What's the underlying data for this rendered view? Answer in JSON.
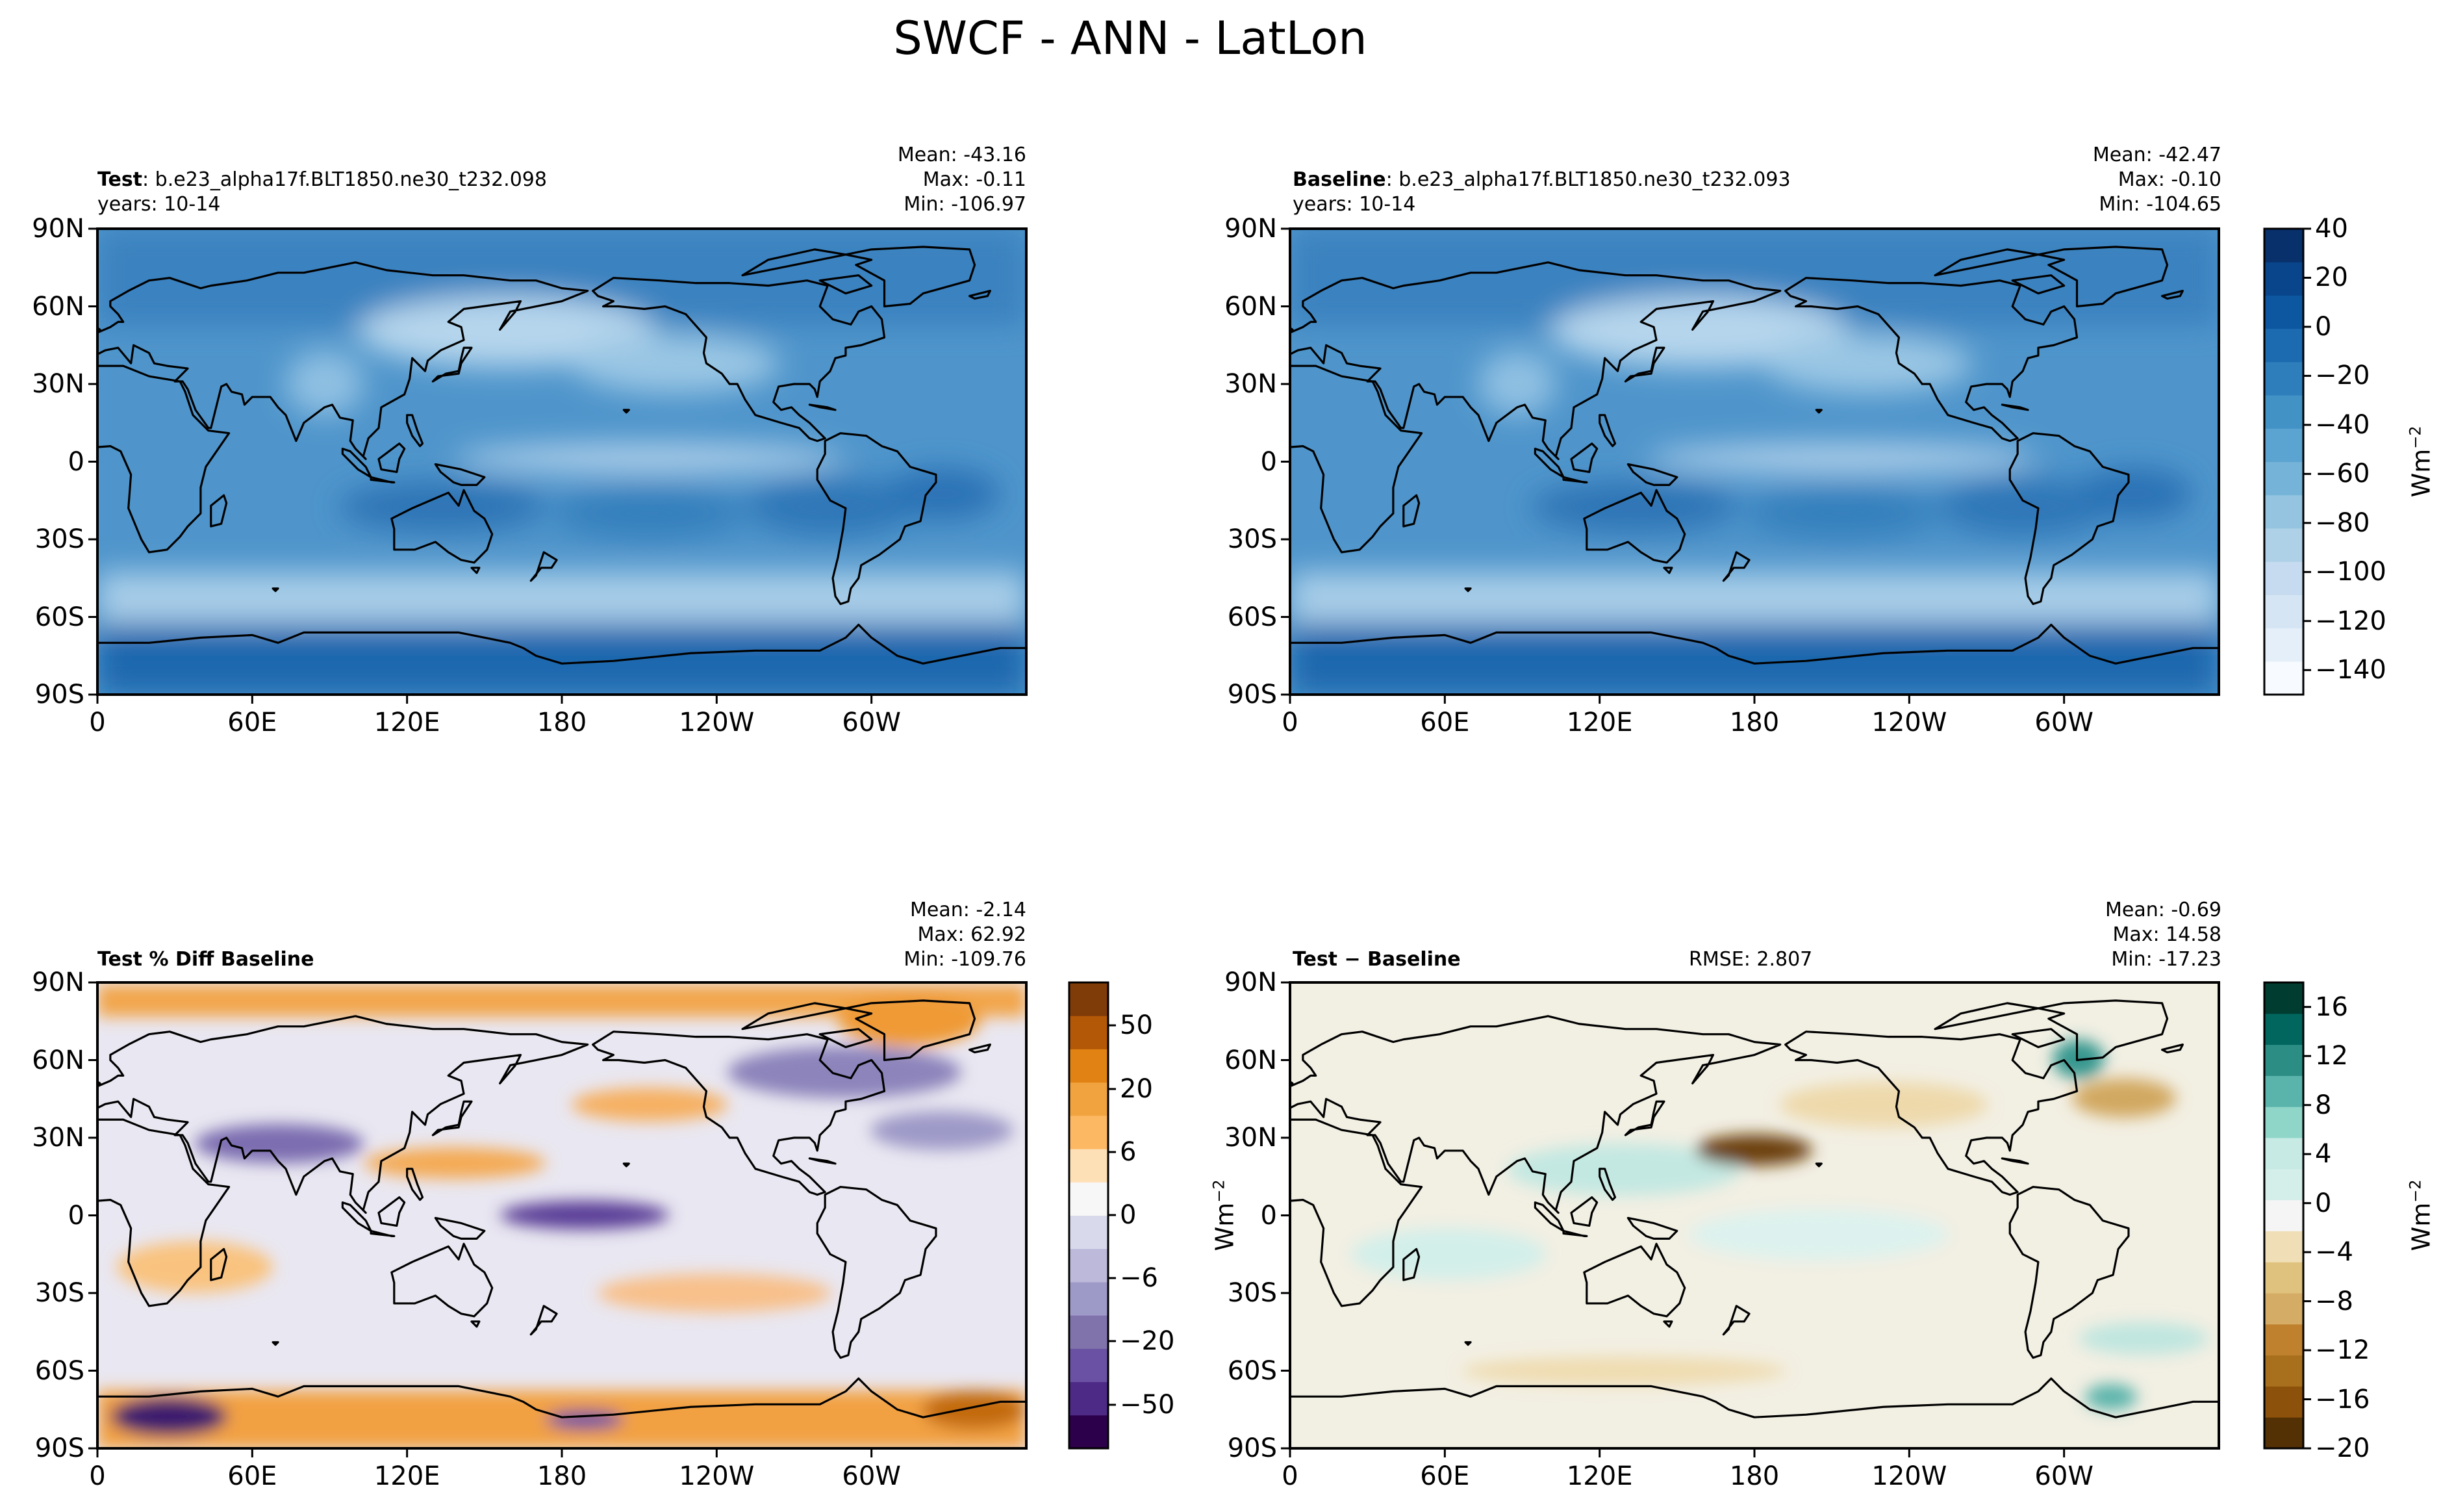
{
  "figure_title": "SWCF - ANN - LatLon",
  "colors": {
    "blues": [
      "#f7fbff",
      "#e4eff9",
      "#d5e5f4",
      "#c6dbef",
      "#aed1e7",
      "#94c4df",
      "#75b3d8",
      "#5ba3d0",
      "#4292c6",
      "#2e7ebc",
      "#1c6aaf",
      "#0d57a1",
      "#08458a",
      "#08306b"
    ],
    "diff_puor": [
      "#2d004b",
      "#4c2a86",
      "#6a51a3",
      "#8073ac",
      "#9e9ac8",
      "#bcb9da",
      "#d8daeb",
      "#f7f7f7",
      "#fee0b6",
      "#fdb863",
      "#f1a340",
      "#e08214",
      "#b35806",
      "#7f3b08"
    ],
    "diff_brbg": [
      "#543005",
      "#8c510a",
      "#a8701d",
      "#bf812d",
      "#d5ac66",
      "#dfc27d",
      "#f0dfb6",
      "#f5f5f5",
      "#d4eee9",
      "#c7eae5",
      "#8fd6c9",
      "#5ab4ac",
      "#2c8d84",
      "#01665e",
      "#003c30"
    ],
    "land_outline": "#000000"
  },
  "panels": {
    "test": {
      "label_bold": "Test",
      "label_rest": ": b.e23_alpha17f.BLT1850.ne30_t232.098",
      "years": "years: 10-14",
      "mean": "Mean: -43.16",
      "max": "Max: -0.11",
      "min": "Min: -106.97"
    },
    "baseline": {
      "label_bold": "Baseline",
      "label_rest": ": b.e23_alpha17f.BLT1850.ne30_t232.093",
      "years": "years: 10-14",
      "mean": "Mean: -42.47",
      "max": "Max: -0.10",
      "min": "Min: -104.65"
    },
    "pct_diff": {
      "label": "Test % Diff Baseline",
      "mean": "Mean: -2.14",
      "max": "Max: 62.92",
      "min": "Min: -109.76"
    },
    "diff": {
      "label": "Test − Baseline",
      "rmse": "RMSE: 2.807",
      "mean": "Mean: -0.69",
      "max": "Max: 14.58",
      "min": "Min: -17.23"
    }
  },
  "colorbars": {
    "main": {
      "labels": [
        "40",
        "20",
        "0",
        "−20",
        "−40",
        "−60",
        "−80",
        "−100",
        "−120",
        "−140"
      ],
      "unit": "Wm",
      "unit_exp": "−2"
    },
    "pct": {
      "labels": [
        "50",
        "20",
        "6",
        "0",
        "−6",
        "−20",
        "−50"
      ]
    },
    "diff": {
      "labels": [
        "16",
        "12",
        "8",
        "4",
        "0",
        "−4",
        "−8",
        "−12",
        "−16",
        "−20"
      ],
      "unit": "Wm",
      "unit_exp": "−2"
    }
  },
  "axis_unit_left": {
    "unit": "Wm",
    "unit_exp": "−2"
  },
  "chart_data": [
    {
      "type": "heatmap",
      "projection": "plate-carree",
      "variable": "SWCF",
      "season": "ANN",
      "title": "Test: b.e23_alpha17f.BLT1850.ne30_t232.098",
      "x_ticks": [
        "0",
        "60E",
        "120E",
        "180",
        "120W",
        "60W"
      ],
      "x_tick_lon": [
        0,
        60,
        120,
        180,
        240,
        300
      ],
      "xlim": [
        0,
        360
      ],
      "y_ticks": [
        "90N",
        "60N",
        "30N",
        "0",
        "30S",
        "60S",
        "90S"
      ],
      "y_tick_lat": [
        90,
        60,
        30,
        0,
        -30,
        -60,
        -90
      ],
      "ylim": [
        -90,
        90
      ],
      "stats": {
        "mean": -43.16,
        "max": -0.11,
        "min": -106.97
      },
      "colorbar_range": [
        -150,
        40
      ],
      "unit": "W m-2"
    },
    {
      "type": "heatmap",
      "projection": "plate-carree",
      "variable": "SWCF",
      "season": "ANN",
      "title": "Baseline: b.e23_alpha17f.BLT1850.ne30_t232.093",
      "x_ticks": [
        "0",
        "60E",
        "120E",
        "180",
        "120W",
        "60W"
      ],
      "x_tick_lon": [
        0,
        60,
        120,
        180,
        240,
        300
      ],
      "xlim": [
        0,
        360
      ],
      "y_ticks": [
        "90N",
        "60N",
        "30N",
        "0",
        "30S",
        "60S",
        "90S"
      ],
      "y_tick_lat": [
        90,
        60,
        30,
        0,
        -30,
        -60,
        -90
      ],
      "ylim": [
        -90,
        90
      ],
      "stats": {
        "mean": -42.47,
        "max": -0.1,
        "min": -104.65
      },
      "colorbar_range": [
        -150,
        40
      ],
      "unit": "W m-2"
    },
    {
      "type": "heatmap",
      "projection": "plate-carree",
      "variable": "SWCF percent difference",
      "title": "Test % Diff Baseline",
      "x_ticks": [
        "0",
        "60E",
        "120E",
        "180",
        "120W",
        "60W"
      ],
      "x_tick_lon": [
        0,
        60,
        120,
        180,
        240,
        300
      ],
      "xlim": [
        0,
        360
      ],
      "y_ticks": [
        "90N",
        "60N",
        "30N",
        "0",
        "30S",
        "60S",
        "90S"
      ],
      "y_tick_lat": [
        90,
        60,
        30,
        0,
        -30,
        -60,
        -90
      ],
      "ylim": [
        -90,
        90
      ],
      "stats": {
        "mean": -2.14,
        "max": 62.92,
        "min": -109.76
      },
      "colorbar_levels": [
        -100,
        -50,
        -20,
        -6,
        0,
        6,
        20,
        50,
        100
      ],
      "unit": "%"
    },
    {
      "type": "heatmap",
      "projection": "plate-carree",
      "variable": "SWCF difference",
      "title": "Test − Baseline",
      "x_ticks": [
        "0",
        "60E",
        "120E",
        "180",
        "120W",
        "60W"
      ],
      "x_tick_lon": [
        0,
        60,
        120,
        180,
        240,
        300
      ],
      "xlim": [
        0,
        360
      ],
      "y_ticks": [
        "90N",
        "60N",
        "30N",
        "0",
        "30S",
        "60S",
        "90S"
      ],
      "y_tick_lat": [
        90,
        60,
        30,
        0,
        -30,
        -60,
        -90
      ],
      "ylim": [
        -90,
        90
      ],
      "stats": {
        "mean": -0.69,
        "max": 14.58,
        "min": -17.23,
        "rmse": 2.807
      },
      "colorbar_range": [
        -20,
        18
      ],
      "unit": "W m-2"
    }
  ]
}
